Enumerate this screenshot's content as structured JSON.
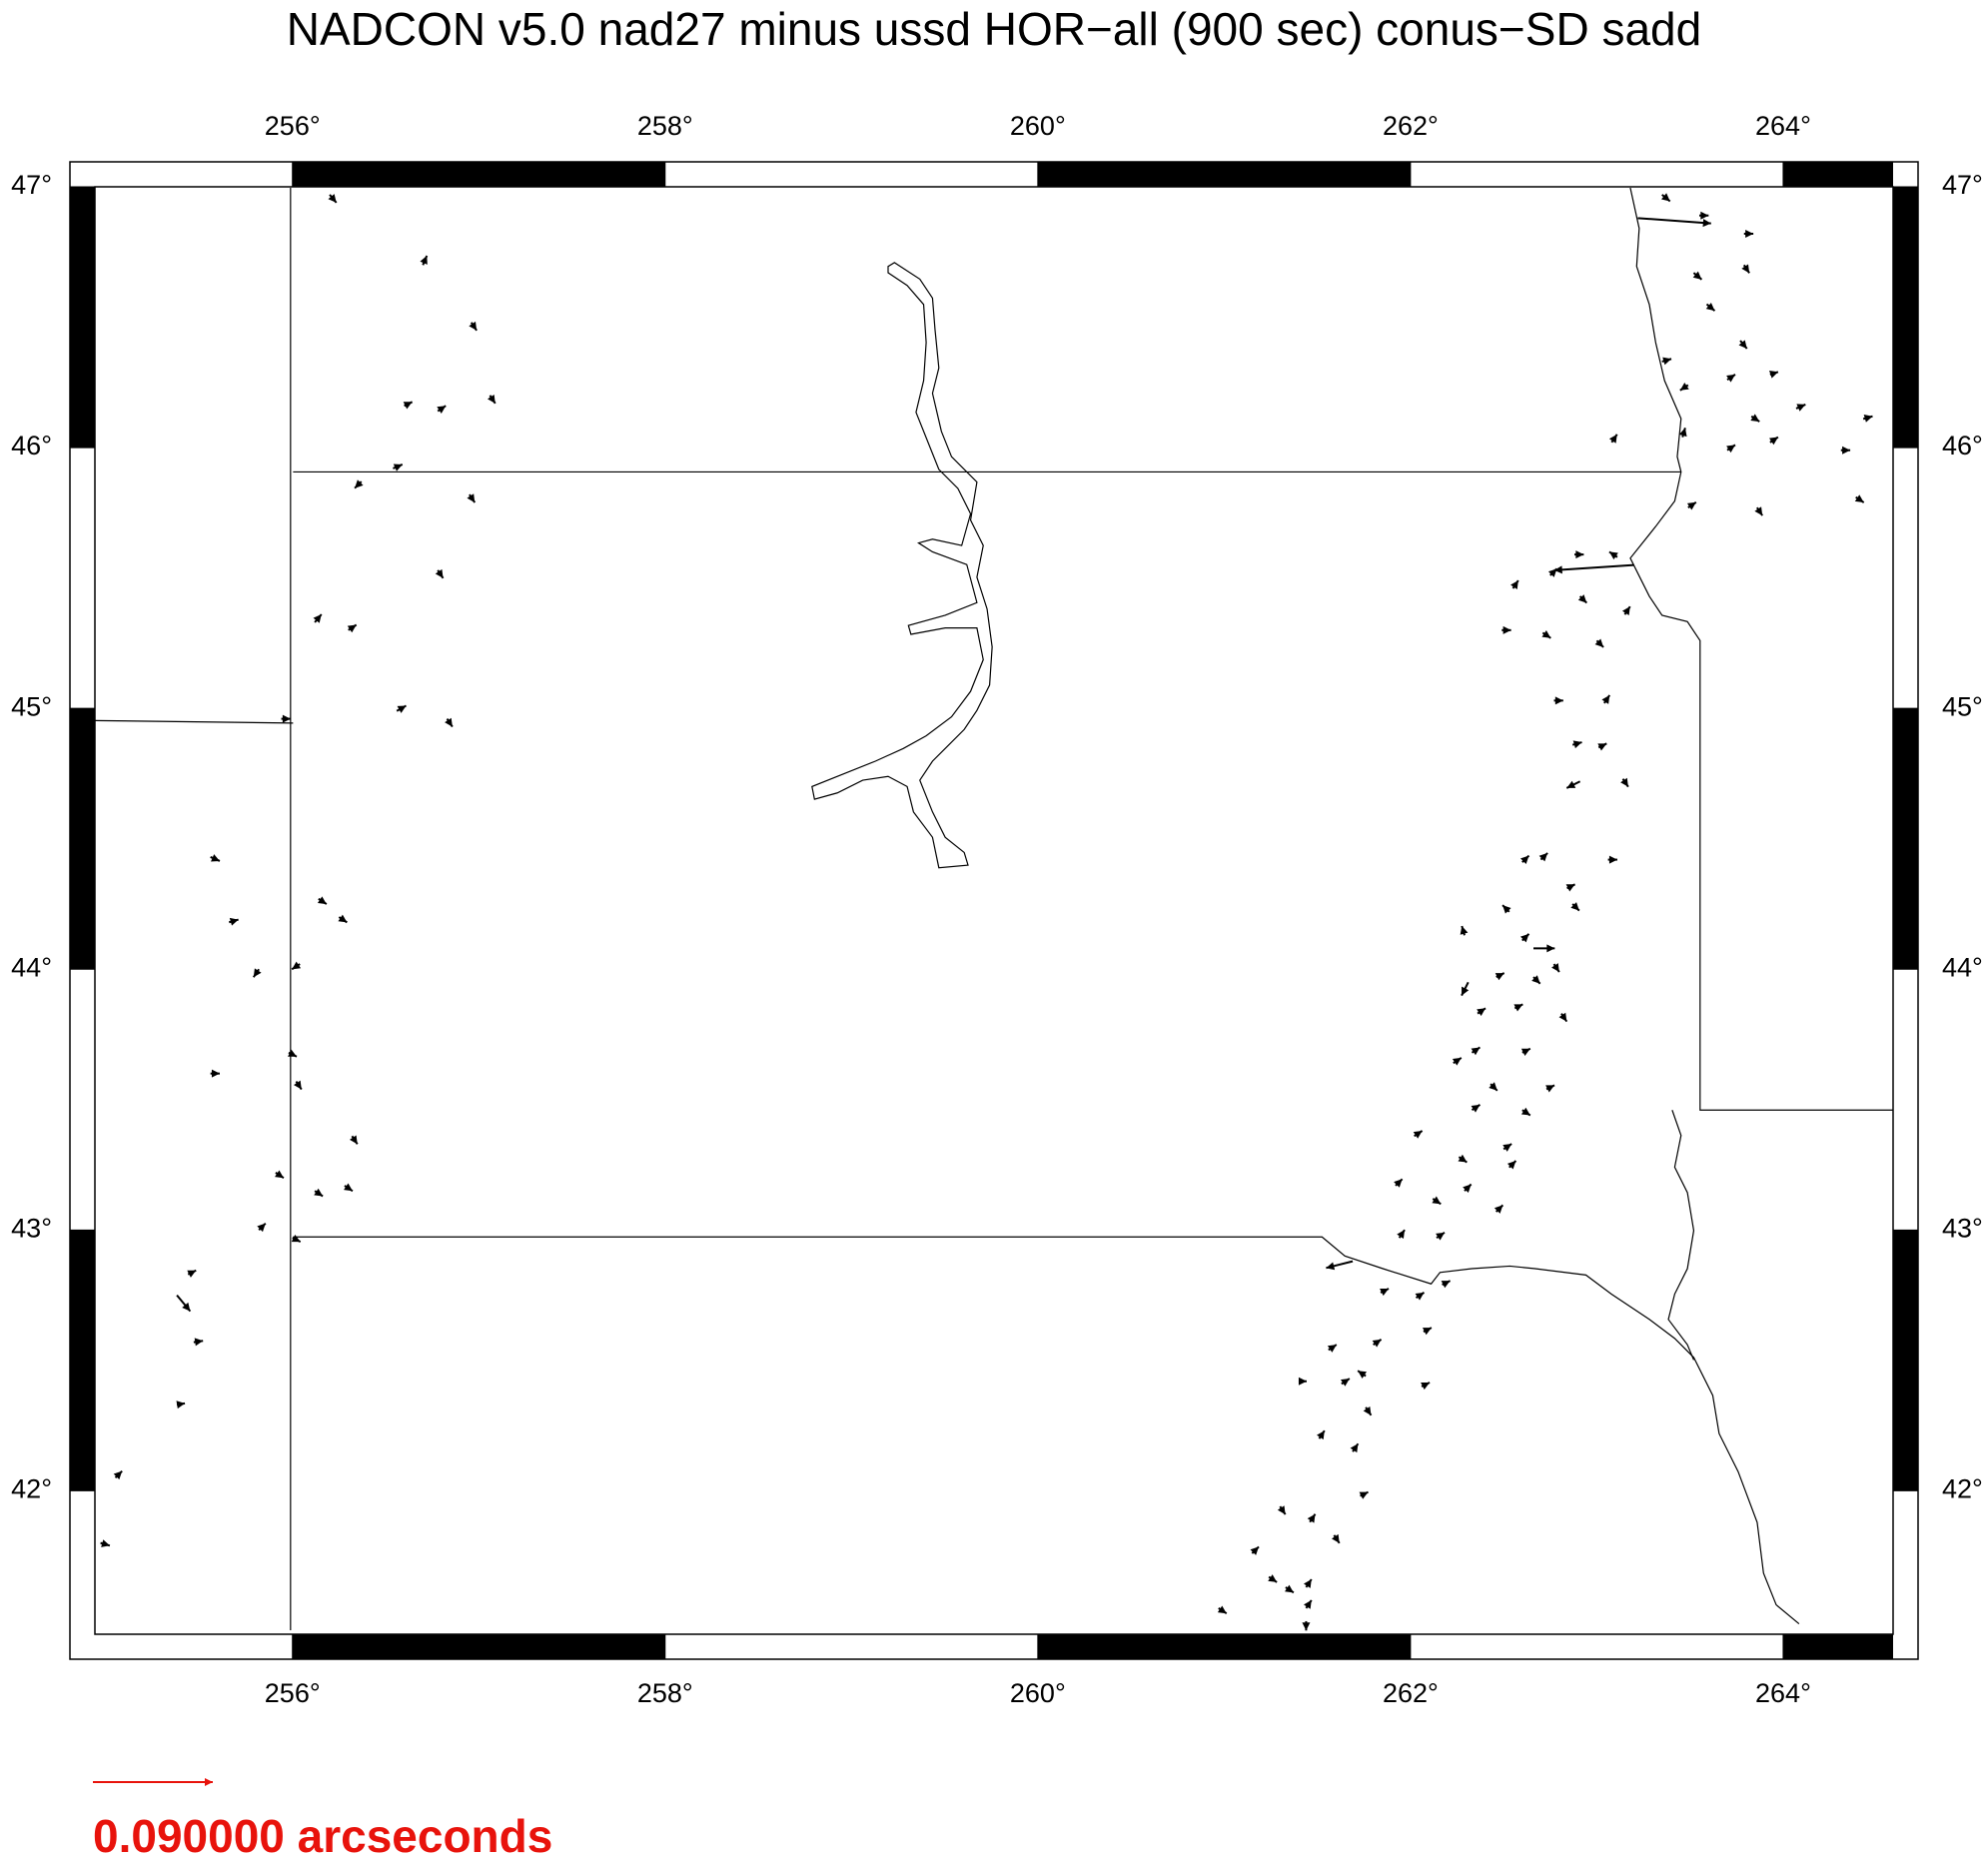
{
  "chart_data": {
    "type": "vector-map",
    "title": "NADCON v5.0 nad27 minus ussd HOR−all (900 sec) conus−SD sadd",
    "xlim": [
      254.94,
      264.59
    ],
    "ylim": [
      41.45,
      47.0
    ],
    "xticks": [
      {
        "value": 256,
        "label": "256°"
      },
      {
        "value": 258,
        "label": "258°"
      },
      {
        "value": 260,
        "label": "260°"
      },
      {
        "value": 262,
        "label": "262°"
      },
      {
        "value": 264,
        "label": "264°"
      }
    ],
    "yticks": [
      {
        "value": 42,
        "label": "42°"
      },
      {
        "value": 43,
        "label": "43°"
      },
      {
        "value": 44,
        "label": "44°"
      },
      {
        "value": 45,
        "label": "45°"
      },
      {
        "value": 46,
        "label": "46°"
      },
      {
        "value": 47,
        "label": "47°"
      }
    ],
    "scale_value": 0.09,
    "scale_label": "0.090000 arcseconds",
    "scale_color": "#e8130c",
    "color": "#000000",
    "vectors": [
      [
        256.2,
        46.97,
        0.005,
        -0.006
      ],
      [
        256.7,
        46.7,
        0.003,
        0.007
      ],
      [
        256.96,
        46.48,
        0.004,
        -0.006
      ],
      [
        256.6,
        46.16,
        0.006,
        0.003
      ],
      [
        256.78,
        46.14,
        0.006,
        0.004
      ],
      [
        257.06,
        46.2,
        0.004,
        -0.006
      ],
      [
        256.54,
        45.92,
        0.007,
        0.003
      ],
      [
        256.37,
        45.87,
        -0.005,
        -0.005
      ],
      [
        256.95,
        45.82,
        0.004,
        -0.006
      ],
      [
        256.78,
        45.53,
        0.004,
        -0.006
      ],
      [
        256.12,
        45.33,
        0.005,
        0.006
      ],
      [
        256.3,
        45.3,
        0.006,
        0.004
      ],
      [
        256.56,
        44.99,
        0.007,
        0.004
      ],
      [
        256.83,
        44.96,
        0.004,
        -0.006
      ],
      [
        255.94,
        44.96,
        0.007,
        0.0
      ],
      [
        255.56,
        44.43,
        0.007,
        -0.003
      ],
      [
        255.66,
        44.18,
        0.007,
        0.002
      ],
      [
        256.14,
        44.27,
        0.006,
        -0.004
      ],
      [
        256.25,
        44.2,
        0.006,
        -0.004
      ],
      [
        255.82,
        44.0,
        -0.004,
        -0.006
      ],
      [
        256.04,
        44.02,
        -0.006,
        -0.004
      ],
      [
        255.56,
        43.6,
        0.007,
        0.0
      ],
      [
        255.98,
        43.68,
        0.006,
        -0.003
      ],
      [
        256.02,
        43.57,
        0.004,
        -0.006
      ],
      [
        256.32,
        43.36,
        0.004,
        -0.006
      ],
      [
        255.91,
        43.22,
        0.006,
        -0.004
      ],
      [
        256.12,
        43.15,
        0.006,
        -0.004
      ],
      [
        256.28,
        43.17,
        0.006,
        -0.004
      ],
      [
        255.82,
        43.0,
        0.005,
        0.005
      ],
      [
        256.0,
        42.97,
        0.006,
        -0.003
      ],
      [
        255.38,
        42.75,
        0.01,
        -0.012
      ],
      [
        255.44,
        42.83,
        0.006,
        0.003
      ],
      [
        255.47,
        42.57,
        0.007,
        0.001
      ],
      [
        255.38,
        42.33,
        0.006,
        0.001
      ],
      [
        255.05,
        42.05,
        0.005,
        0.005
      ],
      [
        254.97,
        41.8,
        0.007,
        -0.002
      ],
      [
        263.22,
        46.88,
        0.055,
        -0.004
      ],
      [
        263.35,
        46.97,
        0.006,
        -0.005
      ],
      [
        263.55,
        46.89,
        0.007,
        0.0
      ],
      [
        263.79,
        46.82,
        0.007,
        0.0
      ],
      [
        263.79,
        46.7,
        0.004,
        -0.006
      ],
      [
        263.52,
        46.67,
        0.006,
        -0.005
      ],
      [
        263.59,
        46.55,
        0.006,
        -0.005
      ],
      [
        263.77,
        46.41,
        0.005,
        -0.006
      ],
      [
        263.35,
        46.33,
        0.007,
        0.002
      ],
      [
        263.49,
        46.24,
        -0.006,
        -0.004
      ],
      [
        263.7,
        46.26,
        0.006,
        0.004
      ],
      [
        263.93,
        46.28,
        0.006,
        0.002
      ],
      [
        264.07,
        46.15,
        0.007,
        0.003
      ],
      [
        263.83,
        46.12,
        0.006,
        -0.004
      ],
      [
        263.93,
        46.02,
        0.006,
        0.004
      ],
      [
        263.7,
        45.99,
        0.006,
        0.004
      ],
      [
        263.46,
        46.04,
        0.002,
        0.007
      ],
      [
        263.08,
        46.02,
        0.004,
        0.006
      ],
      [
        264.31,
        45.99,
        0.007,
        0.0
      ],
      [
        264.43,
        46.11,
        0.007,
        0.002
      ],
      [
        264.39,
        45.81,
        0.006,
        -0.004
      ],
      [
        263.86,
        45.77,
        0.004,
        -0.006
      ],
      [
        263.49,
        45.77,
        0.006,
        0.004
      ],
      [
        262.88,
        45.59,
        0.007,
        0.0
      ],
      [
        263.11,
        45.58,
        -0.006,
        0.004
      ],
      [
        263.2,
        45.55,
        -0.06,
        -0.004
      ],
      [
        262.75,
        45.51,
        0.005,
        0.005
      ],
      [
        262.55,
        45.46,
        0.004,
        0.006
      ],
      [
        262.91,
        45.43,
        0.005,
        -0.005
      ],
      [
        263.15,
        45.36,
        0.004,
        0.006
      ],
      [
        262.49,
        45.3,
        0.007,
        0.0
      ],
      [
        262.71,
        45.29,
        0.006,
        -0.004
      ],
      [
        263.0,
        45.26,
        0.005,
        -0.005
      ],
      [
        262.77,
        45.03,
        0.007,
        0.0
      ],
      [
        263.04,
        45.02,
        0.004,
        0.006
      ],
      [
        262.87,
        44.86,
        0.007,
        0.002
      ],
      [
        263.01,
        44.85,
        0.006,
        0.003
      ],
      [
        263.14,
        44.73,
        0.004,
        -0.006
      ],
      [
        262.91,
        44.72,
        -0.01,
        -0.005
      ],
      [
        263.06,
        44.42,
        0.007,
        0.0
      ],
      [
        262.6,
        44.41,
        0.005,
        0.005
      ],
      [
        262.7,
        44.42,
        0.005,
        0.005
      ],
      [
        262.84,
        44.31,
        0.006,
        0.003
      ],
      [
        262.87,
        44.25,
        0.005,
        -0.005
      ],
      [
        262.53,
        44.22,
        -0.005,
        0.005
      ],
      [
        262.66,
        44.08,
        0.016,
        0.0
      ],
      [
        262.6,
        44.11,
        0.005,
        0.005
      ],
      [
        262.77,
        44.02,
        0.004,
        -0.006
      ],
      [
        262.29,
        44.13,
        -0.002,
        0.007
      ],
      [
        262.31,
        43.95,
        -0.005,
        -0.01
      ],
      [
        262.46,
        43.97,
        0.006,
        0.003
      ],
      [
        262.66,
        43.97,
        0.005,
        -0.005
      ],
      [
        262.36,
        43.83,
        0.006,
        0.004
      ],
      [
        262.56,
        43.85,
        0.006,
        0.003
      ],
      [
        262.81,
        43.83,
        0.004,
        -0.006
      ],
      [
        262.23,
        43.64,
        0.006,
        0.004
      ],
      [
        262.33,
        43.68,
        0.006,
        0.004
      ],
      [
        262.6,
        43.68,
        0.006,
        0.003
      ],
      [
        262.43,
        43.56,
        0.005,
        -0.005
      ],
      [
        262.73,
        43.54,
        0.006,
        0.003
      ],
      [
        262.6,
        43.46,
        0.006,
        -0.004
      ],
      [
        262.33,
        43.46,
        0.006,
        0.004
      ],
      [
        262.5,
        43.31,
        0.006,
        0.004
      ],
      [
        262.26,
        43.28,
        0.006,
        -0.004
      ],
      [
        262.02,
        43.36,
        0.006,
        0.004
      ],
      [
        262.53,
        43.24,
        0.005,
        0.005
      ],
      [
        261.92,
        43.17,
        0.005,
        0.005
      ],
      [
        262.12,
        43.12,
        0.006,
        -0.004
      ],
      [
        262.29,
        43.15,
        0.005,
        0.005
      ],
      [
        262.46,
        43.07,
        0.005,
        0.005
      ],
      [
        261.94,
        42.97,
        0.004,
        0.006
      ],
      [
        262.14,
        42.97,
        0.006,
        0.004
      ],
      [
        261.69,
        42.88,
        -0.02,
        -0.005
      ],
      [
        261.84,
        42.76,
        0.006,
        0.003
      ],
      [
        262.03,
        42.74,
        0.006,
        0.004
      ],
      [
        262.17,
        42.79,
        0.006,
        0.003
      ],
      [
        262.07,
        42.61,
        0.006,
        0.003
      ],
      [
        261.8,
        42.56,
        0.006,
        0.004
      ],
      [
        261.56,
        42.54,
        0.006,
        0.004
      ],
      [
        261.76,
        42.44,
        -0.006,
        0.004
      ],
      [
        261.63,
        42.41,
        0.006,
        0.004
      ],
      [
        261.4,
        42.42,
        0.006,
        0.0
      ],
      [
        262.06,
        42.4,
        0.006,
        0.003
      ],
      [
        261.76,
        42.32,
        0.004,
        -0.006
      ],
      [
        261.51,
        42.2,
        0.004,
        0.006
      ],
      [
        261.69,
        42.15,
        0.004,
        0.006
      ],
      [
        261.73,
        41.98,
        0.006,
        0.003
      ],
      [
        261.3,
        41.94,
        0.004,
        -0.006
      ],
      [
        261.46,
        41.88,
        0.004,
        0.006
      ],
      [
        261.59,
        41.83,
        0.004,
        -0.006
      ],
      [
        261.15,
        41.76,
        0.005,
        0.005
      ],
      [
        261.24,
        41.67,
        0.006,
        -0.004
      ],
      [
        261.44,
        41.63,
        0.004,
        0.006
      ],
      [
        261.33,
        41.63,
        0.006,
        -0.004
      ],
      [
        261.44,
        41.55,
        0.004,
        0.006
      ],
      [
        260.97,
        41.55,
        0.006,
        -0.004
      ],
      [
        261.44,
        41.5,
        0.0,
        -0.007
      ]
    ]
  }
}
